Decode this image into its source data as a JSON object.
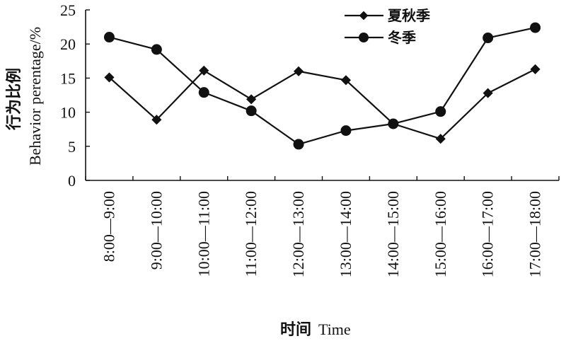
{
  "chart_data": {
    "type": "line",
    "categories": [
      "8:00—9:00",
      "9:00—10:00",
      "10:00—11:00",
      "11:00—12:00",
      "12:00—13:00",
      "13:00—14:00",
      "14:00—15:00",
      "15:00—16:00",
      "16:00—17:00",
      "17:00—18:00"
    ],
    "series": [
      {
        "name": "夏秋季",
        "marker": "diamond",
        "values": [
          15.1,
          8.9,
          16.1,
          11.9,
          16.0,
          14.7,
          8.3,
          6.1,
          12.8,
          16.3
        ]
      },
      {
        "name": "冬季",
        "marker": "circle",
        "values": [
          21.0,
          19.2,
          12.9,
          10.2,
          5.3,
          7.3,
          8.3,
          10.1,
          20.9,
          22.4
        ]
      }
    ],
    "ylim": [
      0,
      25
    ],
    "yticks": [
      0,
      5,
      10,
      15,
      20,
      25
    ],
    "ylabel_cn": "行为比例",
    "ylabel_en": "Behavior perentage/%",
    "xlabel_cn": "时间",
    "xlabel_en": "Time",
    "legend_position": "top-right",
    "grid": false,
    "colors": {
      "line": "#111111"
    }
  }
}
